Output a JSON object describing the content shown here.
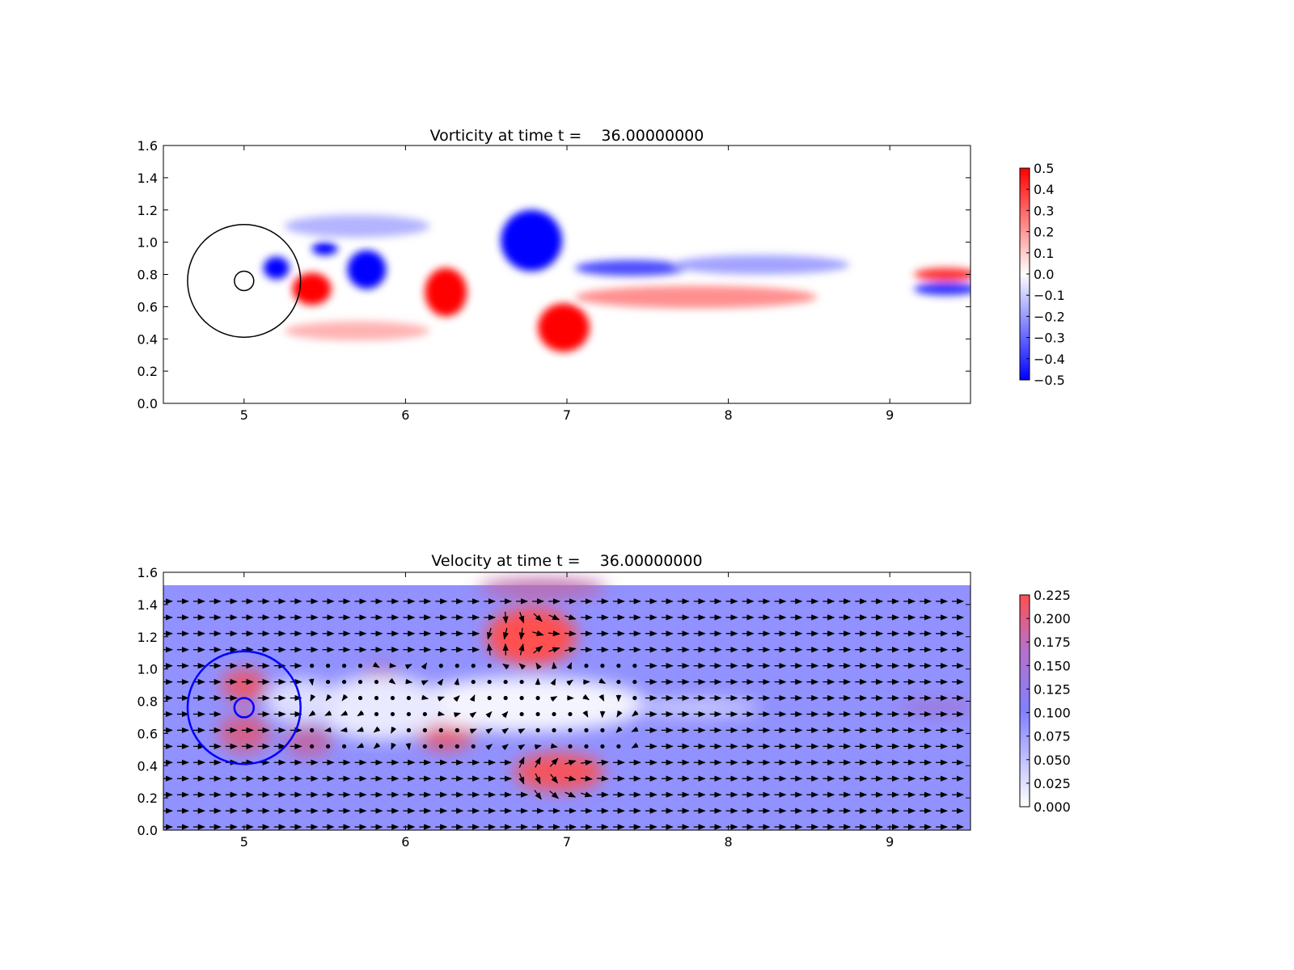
{
  "chart_data": [
    {
      "type": "heatmap",
      "title": "Vorticity at time t =    36.00000000",
      "xlabel": "",
      "ylabel": "",
      "xlim": [
        4.5,
        9.5
      ],
      "ylim": [
        0.0,
        1.6
      ],
      "x_ticks": [
        "5",
        "6",
        "7",
        "8",
        "9"
      ],
      "y_ticks": [
        "0.0",
        "0.2",
        "0.4",
        "0.6",
        "0.8",
        "1.0",
        "1.2",
        "1.4",
        "1.6"
      ],
      "colormap": {
        "low": "#0000ff",
        "mid": "#ffffff",
        "high": "#ff0000"
      },
      "clim": [
        -0.5,
        0.5
      ],
      "colorbar_ticks": [
        "0.5",
        "0.4",
        "0.3",
        "0.2",
        "0.1",
        "0.0",
        "−0.1",
        "−0.2",
        "−0.3",
        "−0.4",
        "−0.5"
      ],
      "circles": [
        {
          "center": [
            5.0,
            0.76
          ],
          "radius": 0.35,
          "color": "#000000"
        },
        {
          "center": [
            5.0,
            0.76
          ],
          "radius": 0.06,
          "color": "#000000"
        }
      ],
      "vortices": [
        {
          "x": 6.78,
          "y": 1.01,
          "rx": 0.19,
          "ry": 0.19,
          "value": -0.5
        },
        {
          "x": 6.98,
          "y": 0.47,
          "rx": 0.16,
          "ry": 0.15,
          "value": 0.5
        },
        {
          "x": 6.25,
          "y": 0.69,
          "rx": 0.13,
          "ry": 0.15,
          "value": 0.5
        },
        {
          "x": 5.76,
          "y": 0.83,
          "rx": 0.12,
          "ry": 0.12,
          "value": -0.5
        },
        {
          "x": 5.42,
          "y": 0.71,
          "rx": 0.12,
          "ry": 0.1,
          "value": 0.5
        },
        {
          "x": 5.2,
          "y": 0.84,
          "rx": 0.08,
          "ry": 0.07,
          "value": -0.5
        },
        {
          "x": 5.5,
          "y": 0.96,
          "rx": 0.08,
          "ry": 0.04,
          "value": -0.5
        },
        {
          "x": 7.4,
          "y": 0.84,
          "rx": 0.35,
          "ry": 0.05,
          "value": -0.35
        },
        {
          "x": 8.2,
          "y": 0.86,
          "rx": 0.55,
          "ry": 0.06,
          "value": -0.18
        },
        {
          "x": 7.8,
          "y": 0.66,
          "rx": 0.75,
          "ry": 0.07,
          "value": 0.22
        },
        {
          "x": 9.35,
          "y": 0.8,
          "rx": 0.2,
          "ry": 0.04,
          "value": 0.4
        },
        {
          "x": 9.35,
          "y": 0.71,
          "rx": 0.2,
          "ry": 0.04,
          "value": -0.4
        },
        {
          "x": 5.7,
          "y": 0.45,
          "rx": 0.45,
          "ry": 0.06,
          "value": 0.15
        },
        {
          "x": 5.7,
          "y": 1.1,
          "rx": 0.45,
          "ry": 0.07,
          "value": -0.15
        }
      ]
    },
    {
      "type": "heatmap",
      "title": "Velocity at time t =    36.00000000",
      "xlabel": "",
      "ylabel": "",
      "xlim": [
        4.5,
        9.5
      ],
      "ylim": [
        0.0,
        1.6
      ],
      "x_ticks": [
        "5",
        "6",
        "7",
        "8",
        "9"
      ],
      "y_ticks": [
        "0.0",
        "0.2",
        "0.4",
        "0.6",
        "0.8",
        "1.0",
        "1.2",
        "1.4",
        "1.6"
      ],
      "colormap": {
        "low": "#ffffff",
        "mid": "#8080ff",
        "high": "#ff5050"
      },
      "clim": [
        0.0,
        0.23
      ],
      "background_speed": 0.1,
      "data_ymax": 1.52,
      "colorbar_ticks": [
        "0.225",
        "0.200",
        "0.175",
        "0.150",
        "0.125",
        "0.100",
        "0.075",
        "0.050",
        "0.025",
        "0.000"
      ],
      "circles": [
        {
          "center": [
            5.0,
            0.76
          ],
          "radius": 0.35,
          "color": "#0000ff"
        },
        {
          "center": [
            5.0,
            0.76
          ],
          "radius": 0.06,
          "color": "#0000ff"
        }
      ],
      "fast_regions": [
        {
          "x": 6.78,
          "y": 1.2,
          "rx": 0.28,
          "ry": 0.18,
          "value": 0.23
        },
        {
          "x": 6.85,
          "y": 1.5,
          "rx": 0.4,
          "ry": 0.06,
          "value": 0.17
        },
        {
          "x": 6.95,
          "y": 0.36,
          "rx": 0.28,
          "ry": 0.12,
          "value": 0.22
        },
        {
          "x": 6.25,
          "y": 0.6,
          "rx": 0.18,
          "ry": 0.11,
          "value": 0.2
        },
        {
          "x": 5.0,
          "y": 0.9,
          "rx": 0.14,
          "ry": 0.1,
          "value": 0.21
        },
        {
          "x": 5.0,
          "y": 0.6,
          "rx": 0.16,
          "ry": 0.12,
          "value": 0.19
        },
        {
          "x": 5.4,
          "y": 0.55,
          "rx": 0.15,
          "ry": 0.1,
          "value": 0.17
        },
        {
          "x": 5.85,
          "y": 0.95,
          "rx": 0.12,
          "ry": 0.08,
          "value": 0.16
        },
        {
          "x": 9.3,
          "y": 0.76,
          "rx": 0.25,
          "ry": 0.05,
          "value": 0.14
        }
      ],
      "slow_regions": [
        {
          "x": 6.75,
          "y": 0.78,
          "rx": 0.75,
          "ry": 0.17,
          "value": 0.01
        },
        {
          "x": 5.85,
          "y": 0.76,
          "rx": 0.4,
          "ry": 0.2,
          "value": 0.02
        },
        {
          "x": 5.35,
          "y": 0.8,
          "rx": 0.22,
          "ry": 0.14,
          "value": 0.03
        },
        {
          "x": 7.8,
          "y": 0.76,
          "rx": 0.4,
          "ry": 0.06,
          "value": 0.05
        }
      ],
      "vector_field": {
        "x_start": 4.52,
        "x_step": 0.1,
        "y_start": 0.02,
        "y_step": 0.1,
        "stagnant_region": {
          "x": [
            5.4,
            7.5
          ],
          "y": [
            0.5,
            1.05
          ]
        }
      }
    }
  ]
}
